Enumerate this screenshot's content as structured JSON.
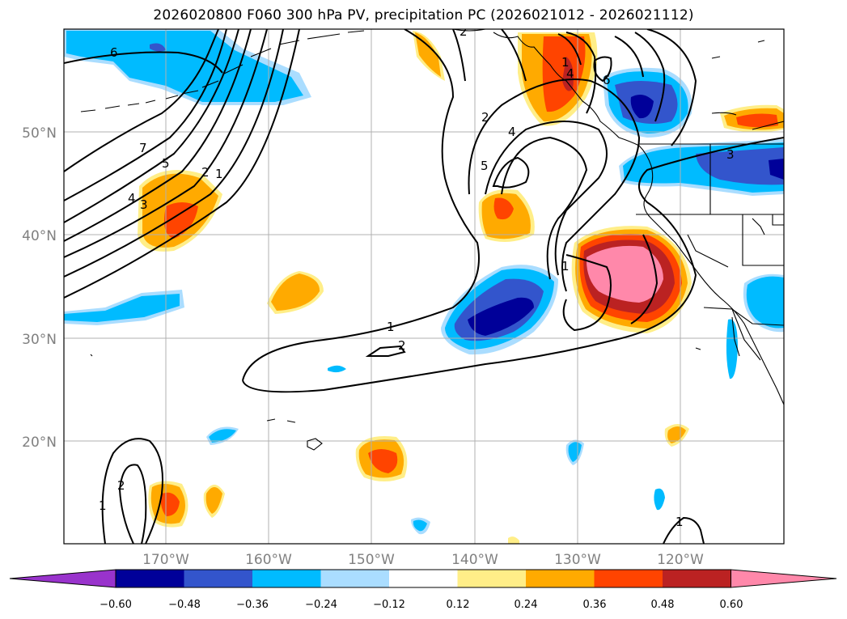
{
  "title": "2026020800 F060 300 hPa PV, precipitation PC (2026021012 - 2026021112)",
  "map": {
    "lat_labels": [
      "50°N",
      "40°N",
      "30°N",
      "20°N"
    ],
    "lon_labels": [
      "170°W",
      "160°W",
      "150°W",
      "140°W",
      "130°W",
      "120°W"
    ],
    "pv_contour_labels": [
      "6",
      "7",
      "5",
      "4",
      "3",
      "2",
      "1",
      "2",
      "1",
      "2",
      "4",
      "5",
      "6",
      "1",
      "2",
      "1",
      "2",
      "1",
      "3",
      "1",
      "4"
    ]
  },
  "colorbar": {
    "ticks": [
      "−0.60",
      "−0.48",
      "−0.36",
      "−0.24",
      "−0.12",
      "0.12",
      "0.24",
      "0.36",
      "0.48",
      "0.60"
    ],
    "colors": [
      "#9933cc",
      "#000099",
      "#3355cc",
      "#00bbff",
      "#aaddff",
      "#ffffff",
      "#ffee88",
      "#ffaa00",
      "#ff4400",
      "#bb2222",
      "#ff88aa"
    ]
  }
}
